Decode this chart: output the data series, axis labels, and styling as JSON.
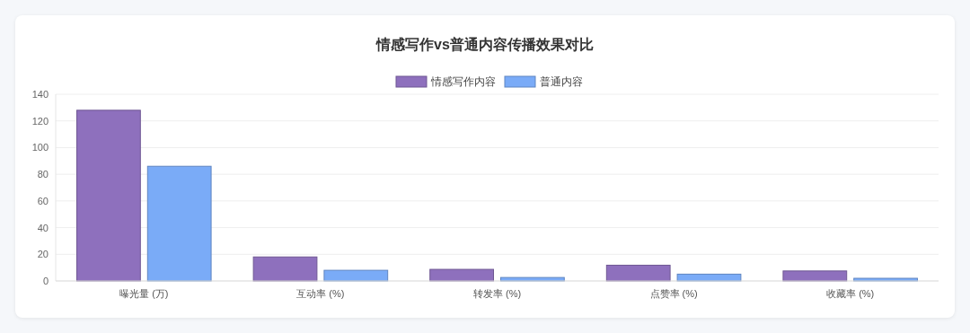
{
  "chart_data": {
    "type": "bar",
    "title": "情感写作vs普通内容传播效果对比",
    "categories": [
      "曝光量 (万)",
      "互动率 (%)",
      "转发率 (%)",
      "点赞率 (%)",
      "收藏率 (%)"
    ],
    "series": [
      {
        "name": "情感写作内容",
        "color": "#8e70bd",
        "values": [
          128,
          18,
          8.7,
          11.8,
          7.5
        ]
      },
      {
        "name": "普通内容",
        "color": "#7aabf7",
        "values": [
          86,
          8,
          2.6,
          5.1,
          2.0
        ]
      }
    ],
    "ylim": [
      0,
      140
    ],
    "yticks": [
      0,
      20,
      40,
      60,
      80,
      100,
      120,
      140
    ],
    "grid": "y",
    "legend": "top"
  }
}
